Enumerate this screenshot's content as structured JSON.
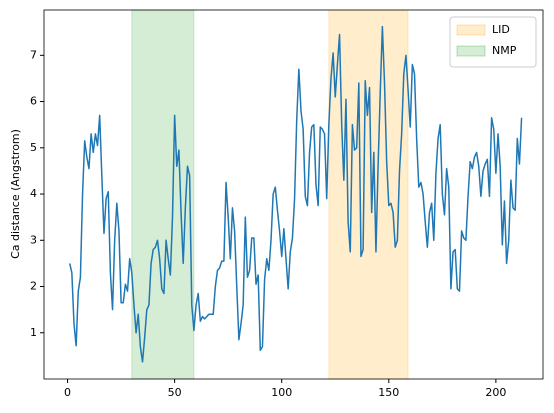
{
  "chart_data": {
    "type": "line",
    "ylabel": "Ca distance (Angstrom)",
    "x": [
      1,
      2,
      3,
      4,
      5,
      6,
      7,
      8,
      9,
      10,
      11,
      12,
      13,
      14,
      15,
      16,
      17,
      18,
      19,
      20,
      21,
      22,
      23,
      24,
      25,
      26,
      27,
      28,
      29,
      30,
      31,
      32,
      33,
      34,
      35,
      36,
      37,
      38,
      39,
      40,
      41,
      42,
      43,
      44,
      45,
      46,
      47,
      48,
      49,
      50,
      51,
      52,
      53,
      54,
      55,
      56,
      57,
      58,
      59,
      60,
      61,
      62,
      63,
      64,
      65,
      66,
      67,
      68,
      69,
      70,
      71,
      72,
      73,
      74,
      75,
      76,
      77,
      78,
      79,
      80,
      81,
      82,
      83,
      84,
      85,
      86,
      87,
      88,
      89,
      90,
      91,
      92,
      93,
      94,
      95,
      96,
      97,
      98,
      99,
      100,
      101,
      102,
      103,
      104,
      105,
      106,
      107,
      108,
      109,
      110,
      111,
      112,
      113,
      114,
      115,
      116,
      117,
      118,
      119,
      120,
      121,
      122,
      123,
      124,
      125,
      126,
      127,
      128,
      129,
      130,
      131,
      132,
      133,
      134,
      135,
      136,
      137,
      138,
      139,
      140,
      141,
      142,
      143,
      144,
      145,
      146,
      147,
      148,
      149,
      150,
      151,
      152,
      153,
      154,
      155,
      156,
      157,
      158,
      159,
      160,
      161,
      162,
      163,
      164,
      165,
      166,
      167,
      168,
      169,
      170,
      171,
      172,
      173,
      174,
      175,
      176,
      177,
      178,
      179,
      180,
      181,
      182,
      183,
      184,
      185,
      186,
      187,
      188,
      189,
      190,
      191,
      192,
      193,
      194,
      195,
      196,
      197,
      198,
      199,
      200,
      201,
      202,
      203,
      204,
      205,
      206,
      207,
      208,
      209,
      210,
      211,
      212
    ],
    "values": [
      2.5,
      2.3,
      1.2,
      0.72,
      1.9,
      2.2,
      4.0,
      5.15,
      4.8,
      4.55,
      5.3,
      4.9,
      5.3,
      5.05,
      5.7,
      4.4,
      3.15,
      3.9,
      4.05,
      2.3,
      1.5,
      3.0,
      3.8,
      3.2,
      1.65,
      1.65,
      2.05,
      1.9,
      2.6,
      2.3,
      1.6,
      1.0,
      1.4,
      0.7,
      0.37,
      0.9,
      1.5,
      1.6,
      2.5,
      2.8,
      2.85,
      3.0,
      2.6,
      1.95,
      1.85,
      3.0,
      2.6,
      2.25,
      3.5,
      5.7,
      4.6,
      4.95,
      3.6,
      2.5,
      3.7,
      4.6,
      4.4,
      1.6,
      1.05,
      1.6,
      1.85,
      1.25,
      1.35,
      1.3,
      1.35,
      1.4,
      1.4,
      1.4,
      2.0,
      2.35,
      2.4,
      2.55,
      2.55,
      4.25,
      3.5,
      2.6,
      3.7,
      3.2,
      2.0,
      0.85,
      1.2,
      1.6,
      3.5,
      2.2,
      2.35,
      3.05,
      3.05,
      2.05,
      2.25,
      0.62,
      0.7,
      2.15,
      2.6,
      2.35,
      3.0,
      4.0,
      4.15,
      3.65,
      3.2,
      2.65,
      3.25,
      2.6,
      1.95,
      2.75,
      3.05,
      3.9,
      5.6,
      6.7,
      5.8,
      5.4,
      3.95,
      3.75,
      4.9,
      5.45,
      5.5,
      4.2,
      3.75,
      5.45,
      5.4,
      5.3,
      3.9,
      5.5,
      6.5,
      7.05,
      6.1,
      6.8,
      7.45,
      5.5,
      4.3,
      6.05,
      3.4,
      2.75,
      5.5,
      4.95,
      5.0,
      6.4,
      2.65,
      2.8,
      6.45,
      5.7,
      6.3,
      3.6,
      4.9,
      2.75,
      4.6,
      6.2,
      7.62,
      6.4,
      4.7,
      3.75,
      3.8,
      3.6,
      2.85,
      3.0,
      4.5,
      5.3,
      6.6,
      7.0,
      6.25,
      5.45,
      6.8,
      6.6,
      5.2,
      4.15,
      4.25,
      4.0,
      3.4,
      2.85,
      3.6,
      3.8,
      3.0,
      4.45,
      5.2,
      5.5,
      4.0,
      3.55,
      4.55,
      4.15,
      1.95,
      2.75,
      2.8,
      1.95,
      1.9,
      3.2,
      3.05,
      3.0,
      3.95,
      4.7,
      4.55,
      4.8,
      4.9,
      4.6,
      3.95,
      4.5,
      4.65,
      4.75,
      3.95,
      5.65,
      5.4,
      4.45,
      5.3,
      4.6,
      2.9,
      3.85,
      2.5,
      3.0,
      4.3,
      3.7,
      3.65,
      5.2,
      4.65,
      5.65
    ],
    "color": "#1f77b4",
    "regions": [
      {
        "name": "LID",
        "start": 122,
        "end": 159,
        "color": "#ffa500"
      },
      {
        "name": "NMP",
        "start": 30,
        "end": 59,
        "color": "#2ca02c"
      }
    ],
    "legend": "upper right",
    "xlim": [
      -11,
      222
    ],
    "xticks": [
      0,
      50,
      100,
      150,
      200
    ],
    "ylim": [
      0,
      7.98
    ],
    "yticks": [
      1,
      2,
      3,
      4,
      5,
      6,
      7
    ]
  }
}
